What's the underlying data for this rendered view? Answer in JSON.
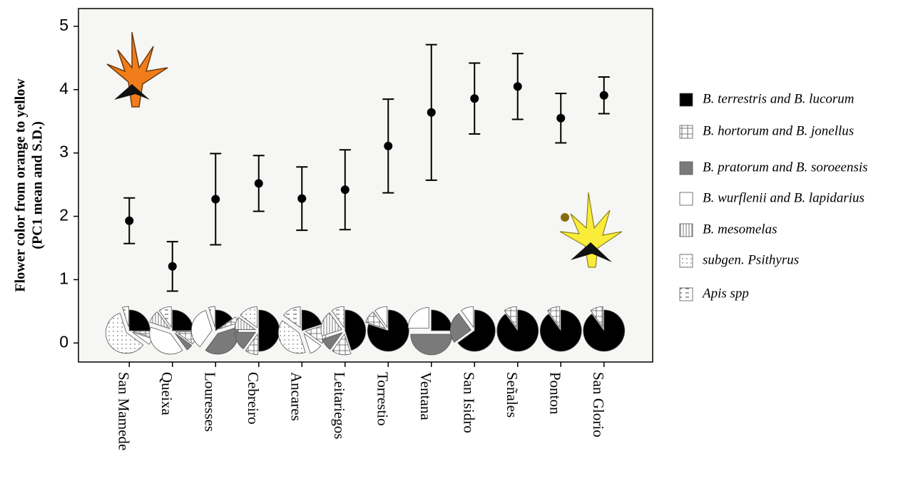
{
  "chart_data": {
    "type": "errorbar",
    "ylabel": [
      "Flower color from orange to yellow",
      "(PC1 mean and S.D.)"
    ],
    "categories": [
      "San Mamede",
      "Queixa",
      "Louresses",
      "Cebreiro",
      "Ancares",
      "Leitariegos",
      "Torrestio",
      "Ventana",
      "San Isidro",
      "Señales",
      "Ponton",
      "San Glorio"
    ],
    "values": [
      1.93,
      1.21,
      2.27,
      2.52,
      2.28,
      2.42,
      3.11,
      3.64,
      3.86,
      4.05,
      3.55,
      3.91
    ],
    "errors": [
      0.36,
      0.39,
      0.72,
      0.44,
      0.5,
      0.63,
      0.74,
      1.07,
      0.56,
      0.52,
      0.39,
      0.29
    ],
    "color": "#000000",
    "ylim": [
      -0.3,
      5.28
    ],
    "yticks": [
      0,
      1,
      2,
      3,
      4,
      5
    ],
    "pie_series": [
      {
        "name": "B. terrestris and B. lucorum",
        "color": "#000000",
        "values": [
          25,
          25,
          15,
          50,
          20,
          45,
          80,
          25,
          65,
          90,
          90,
          90
        ]
      },
      {
        "name": "B. hortorum and  B. jonellus",
        "color": "grid",
        "values": [
          5,
          10,
          5,
          10,
          15,
          15,
          10,
          0,
          0,
          10,
          10,
          10
        ]
      },
      {
        "name": "B. pratorum and  B. soroeensis",
        "color": "#7a7a7a",
        "values": [
          0,
          5,
          40,
          15,
          0,
          10,
          0,
          50,
          25,
          0,
          0,
          0
        ]
      },
      {
        "name": "B. wurflenii and  B. lapidarius",
        "color": "#ffffff",
        "values": [
          5,
          40,
          35,
          0,
          10,
          0,
          10,
          25,
          10,
          0,
          0,
          0
        ]
      },
      {
        "name": "B. mesomelas",
        "color": "vlines",
        "values": [
          0,
          10,
          0,
          10,
          0,
          20,
          0,
          0,
          0,
          0,
          0,
          0
        ]
      },
      {
        "name": "subgen. Psithyrus",
        "color": "dots",
        "values": [
          60,
          0,
          0,
          15,
          40,
          0,
          0,
          0,
          0,
          0,
          0,
          0
        ]
      },
      {
        "name": "Apis spp",
        "color": "dashes",
        "values": [
          5,
          10,
          5,
          0,
          15,
          10,
          0,
          0,
          0,
          0,
          0,
          0
        ]
      }
    ]
  }
}
